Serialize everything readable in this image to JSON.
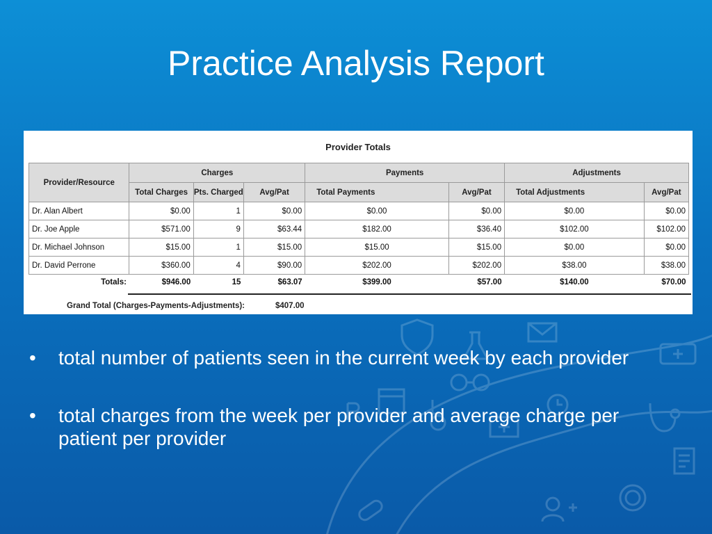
{
  "slide": {
    "title": "Practice Analysis Report"
  },
  "report": {
    "title": "Provider Totals",
    "group_headers": {
      "provider": "Provider/Resource",
      "charges": "Charges",
      "payments": "Payments",
      "adjustments": "Adjustments"
    },
    "sub_headers": {
      "total_charges": "Total Charges",
      "pts_charged": "Pts. Charged",
      "charges_avg": "Avg/Pat",
      "total_payments": "Total Payments",
      "payments_avg": "Avg/Pat",
      "total_adjustments": "Total Adjustments",
      "adjustments_avg": "Avg/Pat"
    },
    "rows": [
      {
        "provider": "Dr. Alan Albert",
        "total_charges": "$0.00",
        "pts_charged": "1",
        "charges_avg": "$0.00",
        "total_payments": "$0.00",
        "payments_avg": "$0.00",
        "total_adjustments": "$0.00",
        "adjustments_avg": "$0.00"
      },
      {
        "provider": "Dr. Joe Apple",
        "total_charges": "$571.00",
        "pts_charged": "9",
        "charges_avg": "$63.44",
        "total_payments": "$182.00",
        "payments_avg": "$36.40",
        "total_adjustments": "$102.00",
        "adjustments_avg": "$102.00"
      },
      {
        "provider": "Dr. Michael Johnson",
        "total_charges": "$15.00",
        "pts_charged": "1",
        "charges_avg": "$15.00",
        "total_payments": "$15.00",
        "payments_avg": "$15.00",
        "total_adjustments": "$0.00",
        "adjustments_avg": "$0.00"
      },
      {
        "provider": "Dr. David Perrone",
        "total_charges": "$360.00",
        "pts_charged": "4",
        "charges_avg": "$90.00",
        "total_payments": "$202.00",
        "payments_avg": "$202.00",
        "total_adjustments": "$38.00",
        "adjustments_avg": "$38.00"
      }
    ],
    "totals": {
      "label": "Totals:",
      "total_charges": "$946.00",
      "pts_charged": "15",
      "charges_avg": "$63.07",
      "total_payments": "$399.00",
      "payments_avg": "$57.00",
      "total_adjustments": "$140.00",
      "adjustments_avg": "$70.00"
    },
    "grand_total": {
      "label": "Grand Total (Charges-Payments-Adjustments):",
      "value": "$407.00"
    }
  },
  "bullets": [
    {
      "marker": "•",
      "text": "total number of patients seen in the current week by each provider"
    },
    {
      "marker": "•",
      "text": "total charges from the week per provider and average charge per patient per provider"
    }
  ],
  "decoration": {
    "icons": [
      "shield-icon",
      "envelope-icon",
      "flask-icon",
      "calendar-icon",
      "ambulance-icon",
      "rx-icon",
      "wheelchair-icon",
      "clock-icon",
      "stethoscope-icon",
      "glasses-icon",
      "medical-kit-icon",
      "gear-icon",
      "pill-icon",
      "document-icon",
      "add-user-icon"
    ],
    "color": "#ffffff"
  }
}
